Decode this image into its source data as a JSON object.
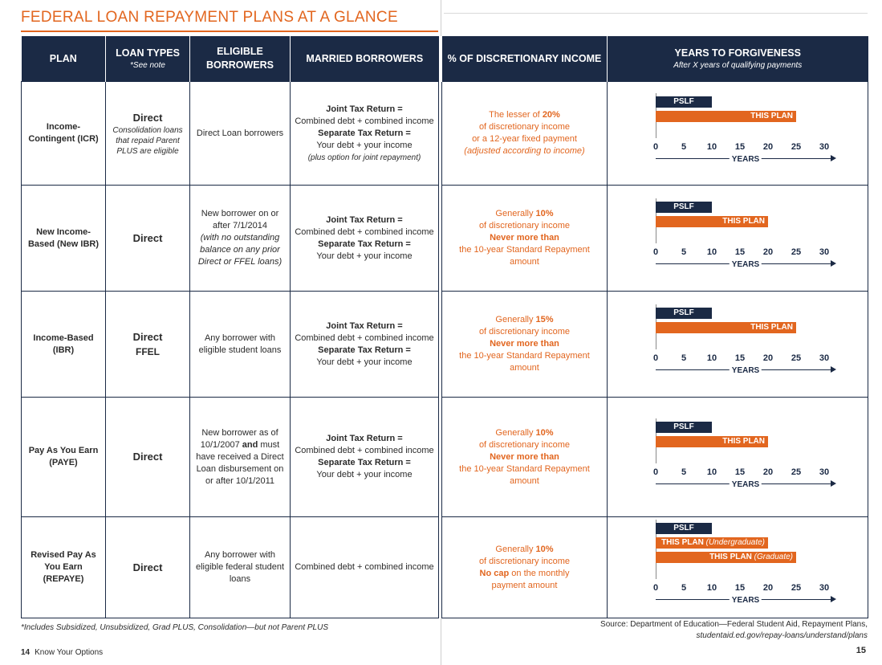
{
  "title": "FEDERAL LOAN REPAYMENT PLANS AT A GLANCE",
  "headers": {
    "plan": "PLAN",
    "loan_types": "LOAN TYPES",
    "loan_types_sub": "*See note",
    "eligible": "ELIGIBLE BORROWERS",
    "married": "MARRIED BORROWERS",
    "pct": "% OF DISCRETIONARY INCOME",
    "years": "YEARS TO FORGIVENESS",
    "years_sub": "After X years of qualifying payments"
  },
  "rows": [
    {
      "plan": "Income-Contingent (ICR)",
      "loan_main": "Direct",
      "loan_note": "Consolidation loans that repaid Parent PLUS are eligible",
      "eligible": "Direct Loan borrowers",
      "married_joint_label": "Joint Tax Return =",
      "married_joint_text": "Combined debt + combined income",
      "married_sep_label": "Separate Tax Return =",
      "married_sep_text": "Your debt + your income",
      "married_note": "(plus option for joint repayment)",
      "pct_l1": "The lesser of",
      "pct_l1_bold": "20%",
      "pct_l2": "of discretionary income",
      "pct_l3": "or a 12-year fixed payment",
      "pct_l4": "(adjusted according to income)"
    },
    {
      "plan": "New Income-Based (New IBR)",
      "loan_main": "Direct",
      "eligible_a": "New borrower on or after 7/1/2014",
      "eligible_b": "(with no outstanding balance on any prior Direct or FFEL loans)",
      "married_joint_label": "Joint Tax Return =",
      "married_joint_text": "Combined debt + combined income",
      "married_sep_label": "Separate Tax Return =",
      "married_sep_text": "Your debt + your income",
      "pct_l1": "Generally",
      "pct_l1_bold": "10%",
      "pct_l2": "of discretionary income",
      "pct_l3_bold": "Never more than",
      "pct_l4": "the 10-year Standard Repayment amount"
    },
    {
      "plan": "Income-Based (IBR)",
      "loan_main": "Direct",
      "loan_main2": "FFEL",
      "eligible": "Any borrower with eligible student loans",
      "married_joint_label": "Joint Tax Return =",
      "married_joint_text": "Combined debt + combined income",
      "married_sep_label": "Separate Tax Return =",
      "married_sep_text": "Your debt + your income",
      "pct_l1": "Generally",
      "pct_l1_bold": "15%",
      "pct_l2": "of discretionary income",
      "pct_l3_bold": "Never more than",
      "pct_l4": "the 10-year Standard Repayment amount"
    },
    {
      "plan": "Pay As You Earn (PAYE)",
      "loan_main": "Direct",
      "eligible_a": "New borrower as of 10/1/2007",
      "eligible_and": "and",
      "eligible_b": "must have received a Direct Loan disbursement on or after 10/1/2011",
      "married_joint_label": "Joint Tax Return =",
      "married_joint_text": "Combined debt + combined income",
      "married_sep_label": "Separate Tax Return =",
      "married_sep_text": "Your debt + your income",
      "pct_l1": "Generally",
      "pct_l1_bold": "10%",
      "pct_l2": "of discretionary income",
      "pct_l3_bold": "Never more than",
      "pct_l4": "the 10-year Standard Repayment amount"
    },
    {
      "plan": "Revised Pay As You Earn (REPAYE)",
      "loan_main": "Direct",
      "eligible": "Any borrower with eligible federal student loans",
      "married_text": "Combined debt + combined income",
      "pct_l1": "Generally",
      "pct_l1_bold": "10%",
      "pct_l2": "of discretionary income",
      "pct_l3_bold": "No cap",
      "pct_l3_rest": "on the monthly",
      "pct_l4": "payment amount"
    }
  ],
  "chart_data": {
    "type": "bar",
    "xlim": [
      0,
      30
    ],
    "ticks": [
      "0",
      "5",
      "10",
      "15",
      "20",
      "25",
      "30"
    ],
    "xlabel": "YEARS",
    "pslf_label": "PSLF",
    "plan_label": "THIS PLAN",
    "colors": {
      "pslf": "#1b2a45",
      "plan": "#e2661f"
    },
    "rows": [
      {
        "plan": "ICR",
        "bars": [
          {
            "label": "PSLF",
            "years": 10
          },
          {
            "label": "THIS PLAN",
            "years": 25
          }
        ]
      },
      {
        "plan": "New IBR",
        "bars": [
          {
            "label": "PSLF",
            "years": 10
          },
          {
            "label": "THIS PLAN",
            "years": 20
          }
        ]
      },
      {
        "plan": "IBR",
        "bars": [
          {
            "label": "PSLF",
            "years": 10
          },
          {
            "label": "THIS PLAN",
            "years": 25
          }
        ]
      },
      {
        "plan": "PAYE",
        "bars": [
          {
            "label": "PSLF",
            "years": 10
          },
          {
            "label": "THIS PLAN",
            "years": 20
          }
        ]
      },
      {
        "plan": "REPAYE",
        "bars": [
          {
            "label": "PSLF",
            "years": 10
          },
          {
            "label": "THIS PLAN",
            "qualifier": "(Undergraduate)",
            "years": 20
          },
          {
            "label": "THIS PLAN",
            "qualifier": "(Graduate)",
            "years": 25
          }
        ]
      }
    ]
  },
  "footnote": "*Includes Subsidized, Unsubsidized, Grad PLUS, Consolidation—but not Parent PLUS",
  "footer_left_page": "14",
  "footer_left_text": "Know Your Options",
  "source_line1": "Source: Department of Education—Federal Student Aid, Repayment Plans,",
  "source_line2": "studentaid.ed.gov/repay-loans/understand/plans",
  "footer_right_page": "15"
}
